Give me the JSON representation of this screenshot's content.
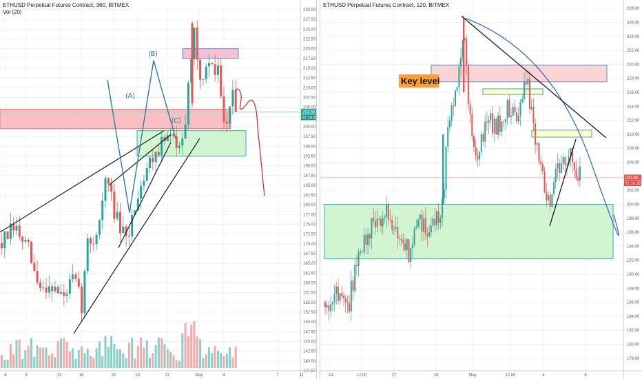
{
  "colors": {
    "up": "#26a69a",
    "down": "#ef5350",
    "vol_up": "#86cfc7",
    "vol_down": "#f5a9a7",
    "grid": "#eef0f3",
    "zone_red_fill": "#f8b5b8",
    "zone_red_stroke": "#e57373",
    "zone_green_fill": "#c9f3c9",
    "zone_green_stroke": "#3aa7b5",
    "zone_yellow_fill": "#ffffc8",
    "zone_yellow_stroke": "#3aa7b5",
    "wave": "#2c7aa0",
    "projection": "#e01e1e",
    "trendline": "#131722",
    "curve": "#2862c8",
    "keylevel_bg": "#ff9f32",
    "price_tag": "#26a69a",
    "price_tag_red": "#ef5350"
  },
  "left_chart": {
    "header": "ETHUSD Perpetual Futures Contract, 360, BITMEX",
    "volume_label": "Vol (20)",
    "wave_labels": [
      "(A)",
      "(B)",
      "(C)"
    ],
    "price_label": "203.80",
    "countdown_label": "02:16:38"
  },
  "right_chart": {
    "header": "ETHUSD Perpetual Futures Contract, 120, BITMEX",
    "key_level_label": "Key level",
    "price_label": "203.80",
    "countdown_label": "01:16:38"
  },
  "chart_data": [
    {
      "type": "candlestick",
      "title": "ETHUSD Perpetual Futures Contract, 360, BITMEX",
      "xlabel": "",
      "ylabel": "",
      "x_ticks": [
        "6",
        "9",
        "13",
        "16",
        "20",
        "22",
        "27",
        "May",
        "4",
        "7",
        "11"
      ],
      "y_ticks": [
        137.5,
        140,
        142.5,
        145,
        147.5,
        150,
        152.5,
        155,
        157.5,
        160,
        162.5,
        165,
        167.5,
        170,
        172.5,
        175,
        177.5,
        180,
        182.5,
        185,
        187.5,
        190,
        192.5,
        195,
        197.5,
        200,
        202.5,
        205,
        207.5,
        210,
        212.5,
        215,
        217.5,
        220,
        222.5,
        225,
        227.5,
        230
      ],
      "ylim": [
        137.5,
        230
      ],
      "annotations": {
        "wave_path": [
          [
            156,
            212
          ],
          [
            188,
            178
          ],
          [
            223,
            217
          ],
          [
            255,
            197
          ]
        ],
        "projection_path": [
          [
            341,
            208
          ],
          [
            349,
            205
          ],
          [
            356,
            200
          ],
          [
            363,
            203
          ],
          [
            369,
            211
          ],
          [
            376,
            197
          ],
          [
            385,
            183
          ]
        ],
        "zones": [
          {
            "color": "red",
            "from": 199.5,
            "to": 204.5,
            "x0": "start",
            "x1": 335
          },
          {
            "color": "red",
            "from": 217.5,
            "to": 220.0,
            "x0": 265,
            "x1": 346
          },
          {
            "color": "green",
            "from": 192.5,
            "to": 199.0,
            "x0": 199,
            "x1": 357
          }
        ],
        "trendlines": [
          [
            [
              0,
              173
            ],
            [
              238,
              199
            ]
          ],
          [
            [
              158,
              185
            ],
            [
              248,
              198
            ]
          ],
          [
            [
              172,
              169
            ],
            [
              248,
              196
            ]
          ],
          [
            [
              107,
              147
            ],
            [
              290,
              197
            ]
          ]
        ],
        "last_price": 203.8
      },
      "ohlc_path": [
        {
          "x": 0,
          "y": 170
        },
        {
          "x": 20,
          "y": 174
        },
        {
          "x": 40,
          "y": 168
        },
        {
          "x": 55,
          "y": 158
        },
        {
          "x": 72,
          "y": 160
        },
        {
          "x": 90,
          "y": 156
        },
        {
          "x": 105,
          "y": 161
        },
        {
          "x": 118,
          "y": 154
        },
        {
          "x": 125,
          "y": 170
        },
        {
          "x": 138,
          "y": 172
        },
        {
          "x": 153,
          "y": 187
        },
        {
          "x": 168,
          "y": 176
        },
        {
          "x": 182,
          "y": 170
        },
        {
          "x": 198,
          "y": 183
        },
        {
          "x": 212,
          "y": 190
        },
        {
          "x": 225,
          "y": 194
        },
        {
          "x": 240,
          "y": 197
        },
        {
          "x": 255,
          "y": 196
        },
        {
          "x": 268,
          "y": 201
        },
        {
          "x": 275,
          "y": 215
        },
        {
          "x": 280,
          "y": 226
        },
        {
          "x": 290,
          "y": 211
        },
        {
          "x": 302,
          "y": 216
        },
        {
          "x": 316,
          "y": 214
        },
        {
          "x": 326,
          "y": 200
        },
        {
          "x": 336,
          "y": 208
        },
        {
          "x": 342,
          "y": 204
        }
      ]
    },
    {
      "type": "candlestick",
      "title": "ETHUSD Perpetual Futures Contract, 120, BITMEX",
      "xlabel": "",
      "ylabel": "",
      "x_ticks": [
        "24",
        "12:00",
        "27",
        "29",
        "May",
        "12:00",
        "4",
        "6"
      ],
      "y_ticks": [
        178,
        180,
        182,
        184,
        186,
        188,
        190,
        192,
        194,
        196,
        198,
        200,
        202,
        204,
        206,
        208,
        210,
        212,
        214,
        216,
        218,
        220,
        222,
        224,
        226,
        228
      ],
      "ylim": [
        177,
        229
      ],
      "annotations": {
        "zones": [
          {
            "color": "red",
            "label": "Key level",
            "from": 217.5,
            "to": 219.9
          },
          {
            "color": "yellow",
            "from": 215.7,
            "to": 216.5
          },
          {
            "color": "yellow",
            "from": 209.6,
            "to": 210.6
          },
          {
            "color": "green",
            "from": 192.2,
            "to": 200.0
          }
        ],
        "trendlines": [
          {
            "from": [
              669,
              226.9
            ],
            "to": [
              879,
              209.5
            ]
          },
          {
            "from": [
              797,
              196.9
            ],
            "to": [
              835,
              209.3
            ]
          }
        ],
        "curve": [
          [
            674,
            226.6
          ],
          [
            760,
            219.0
          ],
          [
            820,
            214.0
          ],
          [
            857,
            206.0
          ],
          [
            890,
            199.5
          ]
        ],
        "last_price": 203.8
      },
      "ohlc_path": [
        {
          "x": 470,
          "y": 186
        },
        {
          "x": 490,
          "y": 187
        },
        {
          "x": 505,
          "y": 186
        },
        {
          "x": 518,
          "y": 193
        },
        {
          "x": 540,
          "y": 197
        },
        {
          "x": 560,
          "y": 199
        },
        {
          "x": 575,
          "y": 196
        },
        {
          "x": 592,
          "y": 193
        },
        {
          "x": 605,
          "y": 197
        },
        {
          "x": 625,
          "y": 197
        },
        {
          "x": 640,
          "y": 200
        },
        {
          "x": 648,
          "y": 210
        },
        {
          "x": 660,
          "y": 217
        },
        {
          "x": 672,
          "y": 226
        },
        {
          "x": 678,
          "y": 214
        },
        {
          "x": 690,
          "y": 207
        },
        {
          "x": 705,
          "y": 212
        },
        {
          "x": 720,
          "y": 211
        },
        {
          "x": 735,
          "y": 214
        },
        {
          "x": 750,
          "y": 213
        },
        {
          "x": 762,
          "y": 218
        },
        {
          "x": 772,
          "y": 212
        },
        {
          "x": 782,
          "y": 206
        },
        {
          "x": 790,
          "y": 201
        },
        {
          "x": 798,
          "y": 199
        },
        {
          "x": 806,
          "y": 206
        },
        {
          "x": 815,
          "y": 205
        },
        {
          "x": 828,
          "y": 208
        },
        {
          "x": 838,
          "y": 204
        }
      ]
    }
  ]
}
